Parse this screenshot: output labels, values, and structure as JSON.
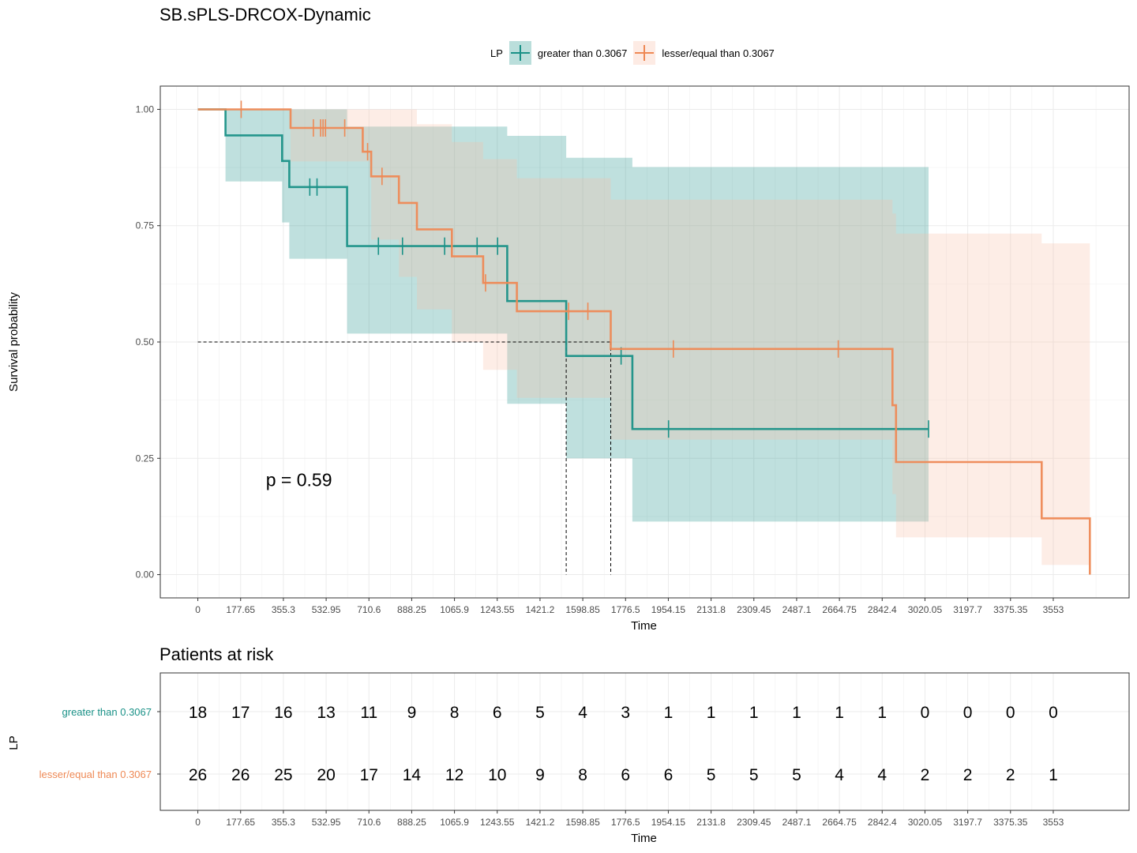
{
  "chart_data": [
    {
      "type": "line",
      "subtype": "kaplan-meier",
      "title": "SB.sPLS-DRCOX-Dynamic",
      "xlabel": "Time",
      "ylabel": "Survival probability",
      "xlim": [
        -156,
        3868
      ],
      "ylim": [
        -0.05,
        1.05
      ],
      "xticks": [
        0,
        177.65,
        355.3,
        532.95,
        710.6,
        888.25,
        1065.9,
        1243.55,
        1421.2,
        1598.85,
        1776.5,
        1954.15,
        2131.8,
        2309.45,
        2487.1,
        2664.75,
        2842.4,
        3020.05,
        3197.7,
        3375.35,
        3553
      ],
      "xtick_labels": [
        "0",
        "177.65",
        "355.3",
        "532.95",
        "710.6",
        "888.25",
        "1065.9",
        "1243.55",
        "1421.2",
        "1598.85",
        "1776.5",
        "1954.15",
        "2131.8",
        "2309.45",
        "2487.1",
        "2664.75",
        "2842.4",
        "3020.05",
        "3197.7",
        "3375.35",
        "3553"
      ],
      "yticks": [
        0,
        0.25,
        0.5,
        0.75,
        1
      ],
      "ytick_labels": [
        "0.00",
        "0.25",
        "0.50",
        "0.75",
        "1.00"
      ],
      "grid": true,
      "legend": {
        "title": "LP",
        "position": "top"
      },
      "annotation": "p = 0.59",
      "median_line": {
        "y": 0.5,
        "x_end": 1715,
        "medians": [
          1530,
          1715
        ]
      },
      "series": [
        {
          "name": "greater than 0.3067",
          "color": "#1A9187",
          "fill": "#1A9187",
          "steps": [
            [
              0,
              1.0
            ],
            [
              115,
              0.944
            ],
            [
              350,
              0.889
            ],
            [
              380,
              0.833
            ],
            [
              620,
              0.706
            ],
            [
              1285,
              0.588
            ],
            [
              1530,
              0.47
            ],
            [
              1805,
              0.313
            ],
            [
              3035,
              0.313
            ]
          ],
          "lower": [
            [
              0,
              1.0
            ],
            [
              115,
              0.845
            ],
            [
              350,
              0.757
            ],
            [
              380,
              0.679
            ],
            [
              620,
              0.518
            ],
            [
              1285,
              0.367
            ],
            [
              1530,
              0.25
            ],
            [
              1805,
              0.114
            ],
            [
              3035,
              0.114
            ]
          ],
          "upper": [
            [
              0,
              1.0
            ],
            [
              115,
              1.0
            ],
            [
              350,
              1.0
            ],
            [
              380,
              1.0
            ],
            [
              620,
              0.963
            ],
            [
              1285,
              0.943
            ],
            [
              1530,
              0.896
            ],
            [
              1805,
              0.876
            ],
            [
              3035,
              0.876
            ]
          ],
          "censors": [
            [
              465,
              0.833
            ],
            [
              495,
              0.833
            ],
            [
              750,
              0.706
            ],
            [
              850,
              0.706
            ],
            [
              1025,
              0.706
            ],
            [
              1160,
              0.706
            ],
            [
              1245,
              0.706
            ],
            [
              1758,
              0.47
            ],
            [
              1955,
              0.313
            ],
            [
              3035,
              0.313
            ]
          ]
        },
        {
          "name": "lesser/equal than 0.3067",
          "color": "#EE8955",
          "fill": "#F9BEA4",
          "steps": [
            [
              0,
              1.0
            ],
            [
              385,
              0.96
            ],
            [
              685,
              0.909
            ],
            [
              720,
              0.856
            ],
            [
              835,
              0.799
            ],
            [
              910,
              0.742
            ],
            [
              1055,
              0.684
            ],
            [
              1185,
              0.627
            ],
            [
              1325,
              0.566
            ],
            [
              1715,
              0.485
            ],
            [
              2885,
              0.364
            ],
            [
              2900,
              0.242
            ],
            [
              3505,
              0.121
            ],
            [
              3705,
              0.0
            ]
          ],
          "lower": [
            [
              0,
              1.0
            ],
            [
              385,
              0.888
            ],
            [
              685,
              0.888
            ],
            [
              720,
              0.72
            ],
            [
              835,
              0.64
            ],
            [
              910,
              0.57
            ],
            [
              1055,
              0.5
            ],
            [
              1185,
              0.44
            ],
            [
              1325,
              0.38
            ],
            [
              1715,
              0.29
            ],
            [
              2885,
              0.173
            ],
            [
              2900,
              0.08
            ],
            [
              3505,
              0.021
            ],
            [
              3705,
              0.0
            ]
          ],
          "upper": [
            [
              0,
              1.0
            ],
            [
              385,
              1.0
            ],
            [
              685,
              1.0
            ],
            [
              720,
              1.0
            ],
            [
              835,
              1.0
            ],
            [
              910,
              0.968
            ],
            [
              1055,
              0.93
            ],
            [
              1185,
              0.893
            ],
            [
              1325,
              0.852
            ],
            [
              1715,
              0.806
            ],
            [
              2885,
              0.776
            ],
            [
              2900,
              0.733
            ],
            [
              3505,
              0.712
            ],
            [
              3705,
              0.712
            ]
          ],
          "censors": [
            [
              180,
              1.0
            ],
            [
              480,
              0.96
            ],
            [
              510,
              0.96
            ],
            [
              520,
              0.96
            ],
            [
              530,
              0.96
            ],
            [
              610,
              0.96
            ],
            [
              705,
              0.909
            ],
            [
              765,
              0.856
            ],
            [
              1195,
              0.627
            ],
            [
              1540,
              0.566
            ],
            [
              1620,
              0.566
            ],
            [
              1975,
              0.485
            ],
            [
              2660,
              0.485
            ]
          ]
        }
      ]
    },
    {
      "type": "table",
      "title": "Patients at risk",
      "xlabel": "Time",
      "ylabel": "LP",
      "xticks": [
        0,
        177.65,
        355.3,
        532.95,
        710.6,
        888.25,
        1065.9,
        1243.55,
        1421.2,
        1598.85,
        1776.5,
        1954.15,
        2131.8,
        2309.45,
        2487.1,
        2664.75,
        2842.4,
        3020.05,
        3197.7,
        3375.35,
        3553
      ],
      "xtick_labels": [
        "0",
        "177.65",
        "355.3",
        "532.95",
        "710.6",
        "888.25",
        "1065.9",
        "1243.55",
        "1421.2",
        "1598.85",
        "1776.5",
        "1954.15",
        "2131.8",
        "2309.45",
        "2487.1",
        "2664.75",
        "2842.4",
        "3020.05",
        "3197.7",
        "3375.35",
        "3553"
      ],
      "rows": [
        {
          "label": "greater than 0.3067",
          "color": "#1A9187",
          "values": [
            "18",
            "17",
            "16",
            "13",
            "11",
            "9",
            "8",
            "6",
            "5",
            "4",
            "3",
            "1",
            "1",
            "1",
            "1",
            "1",
            "1",
            "0",
            "0",
            "0",
            "0"
          ]
        },
        {
          "label": "lesser/equal  than 0.3067",
          "color": "#EE8955",
          "values": [
            "26",
            "26",
            "25",
            "20",
            "17",
            "14",
            "12",
            "10",
            "9",
            "8",
            "6",
            "6",
            "5",
            "5",
            "5",
            "4",
            "4",
            "2",
            "2",
            "2",
            "1"
          ]
        }
      ]
    }
  ]
}
